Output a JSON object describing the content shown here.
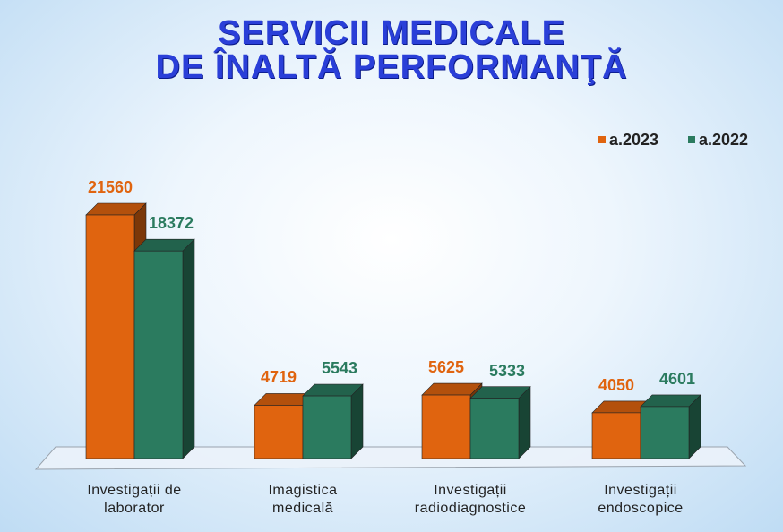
{
  "chart_data": {
    "type": "bar3d",
    "title": "SERVICII MEDICALE\nDE ÎNALTĂ PERFORMANŢĂ",
    "categories": [
      "Investigații de\nlaborator",
      "Imagistica\nmedicală",
      "Investigații\nradiodiagnostice",
      "Investigații\nendoscopice"
    ],
    "series": [
      {
        "name": "a.2023",
        "color": "#e0640f",
        "values": [
          21560,
          4719,
          5625,
          4050
        ]
      },
      {
        "name": "a.2022",
        "color": "#2b7b5f",
        "values": [
          18372,
          5543,
          5333,
          4601
        ]
      }
    ],
    "legend": "top-right"
  }
}
